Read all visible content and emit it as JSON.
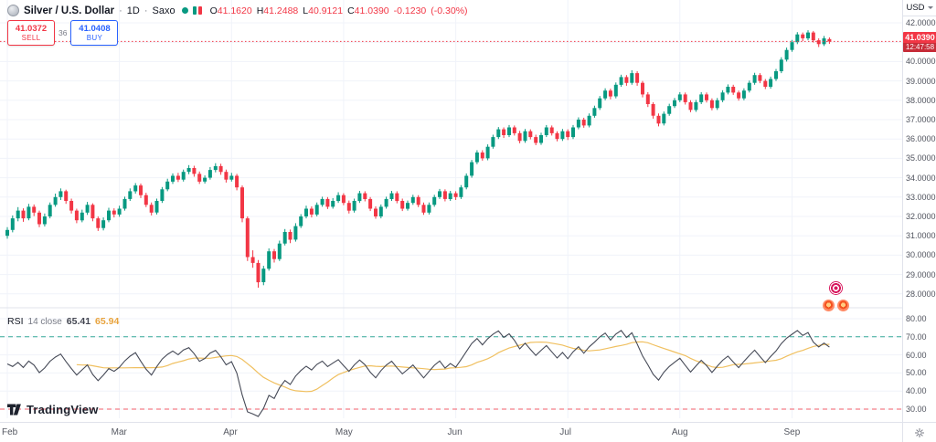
{
  "header": {
    "symbol": "Silver / U.S. Dollar",
    "sep": "·",
    "interval": "1D",
    "source": "Saxo",
    "ohlc": {
      "o_key": "O",
      "o": "41.1620",
      "h_key": "H",
      "h": "41.2488",
      "l_key": "L",
      "l": "40.9121",
      "c_key": "C",
      "c": "41.0390",
      "change": "-0.1230",
      "change_pct": "(-0.30%)"
    }
  },
  "trade_panel": {
    "sell_price": "41.0372",
    "sell_label": "SELL",
    "spread": "36",
    "buy_price": "41.0408",
    "buy_label": "BUY"
  },
  "price_scale": {
    "currency": "USD",
    "ticks": [
      "42.0000",
      "41.0000",
      "40.0000",
      "39.0000",
      "38.0000",
      "37.0000",
      "36.0000",
      "35.0000",
      "34.0000",
      "33.0000",
      "32.0000",
      "31.0000",
      "30.0000",
      "29.0000",
      "28.0000"
    ],
    "last_price": "41.0390",
    "countdown": "12:47:58"
  },
  "rsi_panel": {
    "name": "RSI",
    "params": "14 close",
    "value": "65.41",
    "ma_value": "65.94",
    "ticks": [
      "80.00",
      "70.00",
      "60.00",
      "50.00",
      "40.00",
      "30.00"
    ]
  },
  "time_axis": {
    "months": [
      "Feb",
      "Mar",
      "Apr",
      "May",
      "Jun",
      "Jul",
      "Aug",
      "Sep"
    ]
  },
  "logo": {
    "text": "TradingView"
  },
  "icons": {
    "gear": "gear-icon",
    "caret": "caret-down-icon",
    "coin": "silver-coin-icon",
    "status": "market-status-dot",
    "stickers": [
      "target-sticker",
      "coin-sticker",
      "coin-sticker"
    ]
  },
  "colors": {
    "up": "#089981",
    "down": "#f23645",
    "buy": "#2962ff",
    "grid": "#f0f3fa",
    "divider": "#e0e3eb",
    "axis_text": "#50535e",
    "rsi_line": "#464a57",
    "rsi_ma_line": "#f0c060",
    "band_upper": "#089981",
    "band_lower": "#f23645",
    "last_price_line": "#f23645"
  },
  "chart_data": {
    "type": "candlestick",
    "title": "Silver / U.S. Dollar · 1D · Saxo",
    "price_range": [
      28,
      42
    ],
    "price_tick_step": 1,
    "last_price": 41.039,
    "rsi_range": [
      30,
      80
    ],
    "rsi_bands": {
      "upper": 70,
      "lower": 30
    },
    "rsi_period": 14,
    "rsi_smoothing": 14,
    "months": [
      "Feb",
      "Mar",
      "Apr",
      "May",
      "Jun",
      "Jul",
      "Aug",
      "Sep"
    ],
    "month_starts": [
      0,
      21,
      42,
      63,
      84,
      105,
      126,
      147
    ],
    "candles": [
      [
        31.0,
        31.45,
        30.85,
        31.3
      ],
      [
        31.3,
        32.05,
        31.18,
        31.9
      ],
      [
        31.9,
        32.48,
        31.75,
        32.3
      ],
      [
        32.3,
        32.42,
        31.72,
        31.9
      ],
      [
        31.9,
        32.65,
        31.8,
        32.5
      ],
      [
        32.5,
        32.62,
        32.02,
        32.2
      ],
      [
        32.2,
        32.3,
        31.45,
        31.6
      ],
      [
        31.6,
        32.15,
        31.48,
        32.0
      ],
      [
        32.0,
        32.72,
        31.9,
        32.6
      ],
      [
        32.6,
        33.18,
        32.5,
        33.0
      ],
      [
        33.0,
        33.45,
        32.85,
        33.3
      ],
      [
        33.3,
        33.38,
        32.65,
        32.8
      ],
      [
        32.8,
        32.92,
        32.15,
        32.3
      ],
      [
        32.3,
        32.4,
        31.65,
        31.8
      ],
      [
        31.8,
        32.35,
        31.7,
        32.2
      ],
      [
        32.2,
        32.75,
        32.08,
        32.6
      ],
      [
        32.6,
        32.68,
        31.75,
        31.9
      ],
      [
        31.9,
        32.0,
        31.25,
        31.4
      ],
      [
        31.4,
        31.95,
        31.28,
        31.8
      ],
      [
        31.8,
        32.45,
        31.7,
        32.3
      ],
      [
        32.3,
        32.42,
        31.95,
        32.1
      ],
      [
        32.1,
        32.55,
        31.98,
        32.4
      ],
      [
        32.4,
        33.02,
        32.3,
        32.9
      ],
      [
        32.9,
        33.45,
        32.8,
        33.3
      ],
      [
        33.3,
        33.72,
        33.18,
        33.6
      ],
      [
        33.6,
        33.7,
        32.95,
        33.1
      ],
      [
        33.1,
        33.22,
        32.48,
        32.6
      ],
      [
        32.6,
        32.72,
        32.05,
        32.2
      ],
      [
        32.2,
        32.92,
        32.1,
        32.8
      ],
      [
        32.8,
        33.52,
        32.7,
        33.4
      ],
      [
        33.4,
        33.95,
        33.3,
        33.8
      ],
      [
        33.8,
        34.22,
        33.68,
        34.1
      ],
      [
        34.1,
        34.25,
        33.78,
        33.9
      ],
      [
        33.9,
        34.42,
        33.8,
        34.3
      ],
      [
        34.3,
        34.65,
        34.18,
        34.5
      ],
      [
        34.5,
        34.62,
        34.05,
        34.2
      ],
      [
        34.2,
        34.32,
        33.68,
        33.8
      ],
      [
        33.8,
        34.12,
        33.7,
        34.0
      ],
      [
        34.0,
        34.55,
        33.9,
        34.4
      ],
      [
        34.4,
        34.75,
        34.28,
        34.6
      ],
      [
        34.6,
        34.72,
        34.15,
        34.3
      ],
      [
        34.3,
        34.42,
        33.75,
        33.9
      ],
      [
        33.9,
        34.25,
        33.8,
        34.1
      ],
      [
        34.1,
        34.2,
        33.35,
        33.5
      ],
      [
        33.5,
        33.6,
        31.7,
        31.9
      ],
      [
        31.9,
        32.0,
        29.7,
        29.9
      ],
      [
        29.9,
        30.25,
        29.35,
        29.6
      ],
      [
        29.6,
        29.75,
        28.32,
        28.6
      ],
      [
        28.6,
        29.45,
        28.45,
        29.3
      ],
      [
        29.3,
        30.35,
        29.2,
        30.2
      ],
      [
        30.2,
        30.32,
        29.62,
        29.8
      ],
      [
        29.8,
        30.75,
        29.7,
        30.6
      ],
      [
        30.6,
        31.35,
        30.5,
        31.2
      ],
      [
        31.2,
        31.32,
        30.62,
        30.8
      ],
      [
        30.8,
        31.65,
        30.7,
        31.5
      ],
      [
        31.5,
        32.12,
        31.4,
        32.0
      ],
      [
        32.0,
        32.55,
        31.9,
        32.4
      ],
      [
        32.4,
        32.52,
        31.95,
        32.1
      ],
      [
        32.1,
        32.72,
        32.0,
        32.6
      ],
      [
        32.6,
        33.02,
        32.5,
        32.9
      ],
      [
        32.9,
        33.0,
        32.38,
        32.5
      ],
      [
        32.5,
        32.95,
        32.4,
        32.8
      ],
      [
        32.8,
        33.25,
        32.7,
        33.1
      ],
      [
        33.1,
        33.2,
        32.58,
        32.7
      ],
      [
        32.7,
        32.82,
        32.15,
        32.3
      ],
      [
        32.3,
        32.92,
        32.2,
        32.8
      ],
      [
        32.8,
        33.32,
        32.7,
        33.2
      ],
      [
        33.2,
        33.3,
        32.78,
        32.9
      ],
      [
        32.9,
        33.0,
        32.28,
        32.4
      ],
      [
        32.4,
        32.52,
        31.88,
        32.0
      ],
      [
        32.0,
        32.62,
        31.9,
        32.5
      ],
      [
        32.5,
        33.02,
        32.4,
        32.9
      ],
      [
        32.9,
        33.32,
        32.8,
        33.2
      ],
      [
        33.2,
        33.3,
        32.68,
        32.8
      ],
      [
        32.8,
        32.92,
        32.28,
        32.4
      ],
      [
        32.4,
        32.82,
        32.3,
        32.7
      ],
      [
        32.7,
        33.12,
        32.6,
        33.0
      ],
      [
        33.0,
        33.1,
        32.48,
        32.6
      ],
      [
        32.6,
        32.72,
        32.08,
        32.2
      ],
      [
        32.2,
        32.72,
        32.1,
        32.6
      ],
      [
        32.6,
        33.12,
        32.5,
        33.0
      ],
      [
        33.0,
        33.42,
        32.9,
        33.3
      ],
      [
        33.3,
        33.4,
        32.78,
        32.9
      ],
      [
        32.9,
        33.32,
        32.8,
        33.2
      ],
      [
        33.2,
        33.3,
        32.85,
        33.0
      ],
      [
        33.0,
        33.62,
        32.9,
        33.5
      ],
      [
        33.5,
        34.22,
        33.4,
        34.1
      ],
      [
        34.1,
        34.92,
        34.0,
        34.8
      ],
      [
        34.8,
        35.42,
        34.7,
        35.3
      ],
      [
        35.3,
        35.42,
        34.88,
        35.0
      ],
      [
        35.0,
        35.72,
        34.9,
        35.6
      ],
      [
        35.6,
        36.22,
        35.5,
        36.1
      ],
      [
        36.1,
        36.62,
        36.0,
        36.5
      ],
      [
        36.5,
        36.6,
        36.05,
        36.2
      ],
      [
        36.2,
        36.72,
        36.1,
        36.6
      ],
      [
        36.6,
        36.7,
        36.18,
        36.3
      ],
      [
        36.3,
        36.42,
        35.78,
        35.9
      ],
      [
        35.9,
        36.52,
        35.8,
        36.4
      ],
      [
        36.4,
        36.5,
        35.98,
        36.1
      ],
      [
        36.1,
        36.22,
        35.68,
        35.8
      ],
      [
        35.8,
        36.32,
        35.7,
        36.2
      ],
      [
        36.2,
        36.72,
        36.1,
        36.6
      ],
      [
        36.6,
        36.7,
        36.18,
        36.3
      ],
      [
        36.3,
        36.4,
        35.88,
        36.0
      ],
      [
        36.0,
        36.52,
        35.9,
        36.4
      ],
      [
        36.4,
        36.5,
        35.95,
        36.1
      ],
      [
        36.1,
        36.72,
        36.0,
        36.6
      ],
      [
        36.6,
        37.12,
        36.5,
        37.0
      ],
      [
        37.0,
        37.1,
        36.58,
        36.7
      ],
      [
        36.7,
        37.32,
        36.6,
        37.2
      ],
      [
        37.2,
        37.72,
        37.1,
        37.6
      ],
      [
        37.6,
        38.22,
        37.5,
        38.1
      ],
      [
        38.1,
        38.62,
        38.0,
        38.5
      ],
      [
        38.5,
        38.6,
        38.05,
        38.2
      ],
      [
        38.2,
        38.92,
        38.1,
        38.8
      ],
      [
        38.8,
        39.32,
        38.7,
        39.2
      ],
      [
        39.2,
        39.3,
        38.75,
        38.9
      ],
      [
        38.9,
        39.55,
        38.8,
        39.4
      ],
      [
        39.4,
        39.5,
        38.75,
        38.9
      ],
      [
        38.9,
        39.0,
        38.15,
        38.3
      ],
      [
        38.3,
        38.42,
        37.65,
        37.8
      ],
      [
        37.8,
        37.9,
        37.05,
        37.2
      ],
      [
        37.2,
        37.32,
        36.65,
        36.8
      ],
      [
        36.8,
        37.42,
        36.7,
        37.3
      ],
      [
        37.3,
        37.82,
        37.2,
        37.7
      ],
      [
        37.7,
        38.12,
        37.6,
        38.0
      ],
      [
        38.0,
        38.42,
        37.9,
        38.3
      ],
      [
        38.3,
        38.4,
        37.78,
        37.9
      ],
      [
        37.9,
        38.0,
        37.38,
        37.5
      ],
      [
        37.5,
        38.02,
        37.4,
        37.9
      ],
      [
        37.9,
        38.42,
        37.8,
        38.3
      ],
      [
        38.3,
        38.4,
        37.88,
        38.0
      ],
      [
        38.0,
        38.1,
        37.48,
        37.6
      ],
      [
        37.6,
        38.12,
        37.5,
        38.0
      ],
      [
        38.0,
        38.52,
        37.9,
        38.4
      ],
      [
        38.4,
        38.82,
        38.3,
        38.7
      ],
      [
        38.7,
        38.8,
        38.28,
        38.4
      ],
      [
        38.4,
        38.5,
        37.98,
        38.1
      ],
      [
        38.1,
        38.62,
        38.0,
        38.5
      ],
      [
        38.5,
        39.02,
        38.4,
        38.9
      ],
      [
        38.9,
        39.42,
        38.8,
        39.3
      ],
      [
        39.3,
        39.4,
        38.88,
        39.0
      ],
      [
        39.0,
        39.1,
        38.58,
        38.7
      ],
      [
        38.7,
        39.22,
        38.6,
        39.1
      ],
      [
        39.1,
        39.62,
        39.0,
        39.5
      ],
      [
        39.5,
        40.22,
        39.4,
        40.1
      ],
      [
        40.1,
        40.72,
        40.0,
        40.6
      ],
      [
        40.6,
        41.12,
        40.5,
        41.0
      ],
      [
        41.0,
        41.52,
        40.9,
        41.4
      ],
      [
        41.4,
        41.5,
        41.05,
        41.2
      ],
      [
        41.2,
        41.62,
        41.1,
        41.5
      ],
      [
        41.5,
        41.58,
        40.98,
        41.1
      ],
      [
        41.1,
        41.2,
        40.75,
        40.9
      ],
      [
        40.9,
        41.32,
        40.8,
        41.2
      ],
      [
        41.16,
        41.2488,
        40.9121,
        41.039
      ]
    ]
  }
}
